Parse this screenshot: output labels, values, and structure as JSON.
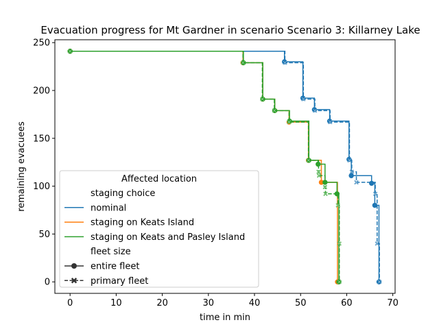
{
  "chart_data": {
    "type": "line",
    "title": "Evacuation progress for Mt Gardner in scenario Scenario 3: Killarney Lake",
    "xlabel": "time in min",
    "ylabel": "remaining evacuees",
    "xlim": [
      -3.3,
      70.5
    ],
    "ylim": [
      -12,
      253
    ],
    "xticks": [
      0,
      10,
      20,
      30,
      40,
      50,
      60,
      70
    ],
    "yticks": [
      0,
      50,
      100,
      150,
      200,
      250
    ],
    "legend": {
      "title": "Affected location",
      "placement": "lower-left",
      "hue_title": "staging choice",
      "style_title": "fleet size",
      "entries": [
        {
          "key": "nominal",
          "label": "nominal",
          "color": "#1f77b4"
        },
        {
          "key": "keats",
          "label": "staging on Keats Island",
          "color": "#ff7f0e"
        },
        {
          "key": "keats_pasley",
          "label": "staging on Keats and Pasley Island",
          "color": "#2ca02c"
        }
      ],
      "styles": [
        {
          "key": "entire",
          "label": "entire fleet",
          "marker": "circle",
          "dash": "solid"
        },
        {
          "key": "primary",
          "label": "primary fleet",
          "marker": "x",
          "dash": "dashed"
        }
      ]
    },
    "series": [
      {
        "name": "nominal",
        "fleet": "entire fleet",
        "color": "#1f77b4",
        "marker": "circle",
        "dash": "solid",
        "x": [
          0,
          46.5,
          50.5,
          53,
          56.3,
          60.5,
          61,
          65.4,
          66.1,
          67
        ],
        "y": [
          241,
          230,
          192,
          180,
          168,
          128,
          111,
          103,
          80,
          0
        ]
      },
      {
        "name": "nominal",
        "fleet": "primary fleet",
        "color": "#1f77b4",
        "marker": "x",
        "dash": "dashed",
        "x": [
          0,
          46.6,
          50.6,
          53.1,
          56.4,
          60.6,
          61.1,
          62.1,
          66.2,
          66.6,
          67.1
        ],
        "y": [
          241,
          229,
          191,
          179,
          167,
          127,
          115,
          104,
          92,
          40,
          0
        ]
      },
      {
        "name": "staging on Keats Island",
        "fleet": "entire fleet",
        "color": "#ff7f0e",
        "marker": "circle",
        "dash": "solid",
        "x": [
          0,
          37.5,
          41.8,
          44.4,
          47.5,
          51.7,
          54.5,
          58
        ],
        "y": [
          241,
          229,
          191,
          179,
          167,
          127,
          104,
          0
        ]
      },
      {
        "name": "staging on Keats and Pasley Island",
        "fleet": "entire fleet",
        "color": "#2ca02c",
        "marker": "circle",
        "dash": "solid",
        "x": [
          0,
          37.6,
          41.8,
          44.4,
          47.6,
          51.8,
          53.8,
          55.3,
          57.9,
          58.3
        ],
        "y": [
          241,
          229,
          191,
          179,
          168,
          127,
          123,
          104,
          92,
          0
        ]
      },
      {
        "name": "staging on Keats and Pasley Island",
        "fleet": "primary fleet",
        "color": "#2ca02c",
        "marker": "x",
        "dash": "dashed",
        "x": [
          0,
          37.5,
          41.7,
          44.3,
          47.5,
          51.7,
          53.9,
          54,
          55.3,
          55.4,
          58.1,
          58.4,
          58.4
        ],
        "y": [
          241,
          229,
          191,
          179,
          167,
          127,
          115,
          111,
          99,
          92,
          80,
          40,
          0
        ]
      }
    ]
  }
}
